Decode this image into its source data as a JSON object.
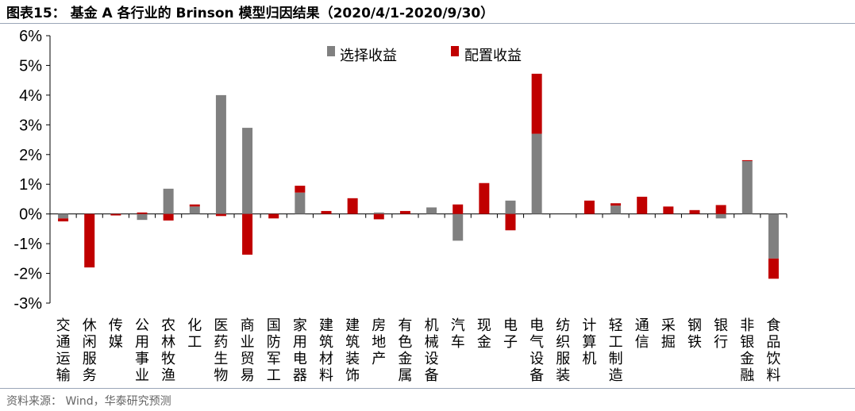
{
  "header": {
    "title": "图表15：  基金 A 各行业的 Brinson 模型归因结果（2020/4/1-2020/9/30）"
  },
  "footer": {
    "source": "资料来源：  Wind，华泰研究预测"
  },
  "chart_data": {
    "type": "bar",
    "stacked": true,
    "ylim": [
      -0.03,
      0.06
    ],
    "yticks": [
      "6%",
      "5%",
      "4%",
      "3%",
      "2%",
      "1%",
      "0%",
      "-1%",
      "-2%",
      "-3%"
    ],
    "ytick_values": [
      0.06,
      0.05,
      0.04,
      0.03,
      0.02,
      0.01,
      0,
      -0.01,
      -0.02,
      -0.03
    ],
    "legend_position": "top-center",
    "colors": {
      "selection": "#808080",
      "allocation": "#c00000"
    },
    "categories": [
      "交通运输",
      "休闲服务",
      "传媒",
      "公用事业",
      "农林牧渔",
      "化工",
      "医药生物",
      "商业贸易",
      "国防军工",
      "家用电器",
      "建筑材料",
      "建筑装饰",
      "房地产",
      "有色金属",
      "机械设备",
      "汽车",
      "现金",
      "电子",
      "电气设备",
      "纺织服装",
      "计算机",
      "轻工制造",
      "通信",
      "采掘",
      "钢铁",
      "银行",
      "非银金融",
      "食品饮料"
    ],
    "series": [
      {
        "name": "选择收益",
        "values": [
          -0.0015,
          0,
          0,
          -0.002,
          0.0085,
          0.0025,
          0.04,
          0.029,
          0,
          0.0072,
          0,
          0,
          0.0005,
          0,
          0.0022,
          -0.009,
          0,
          0.0045,
          0.027,
          0,
          0,
          0.0028,
          0,
          0,
          0,
          -0.0015,
          0.0178,
          -0.015
        ]
      },
      {
        "name": "配置收益",
        "values": [
          -0.001,
          -0.018,
          -0.0005,
          0.0005,
          -0.0022,
          0.0007,
          -0.0007,
          -0.0137,
          -0.0015,
          0.0023,
          0.001,
          0.0053,
          -0.0018,
          0.001,
          0,
          0.0032,
          0.0104,
          -0.0055,
          0.0202,
          0,
          0.0045,
          0.0008,
          0.0058,
          0.0025,
          0.0013,
          0.003,
          0.0003,
          -0.0068
        ]
      }
    ]
  }
}
